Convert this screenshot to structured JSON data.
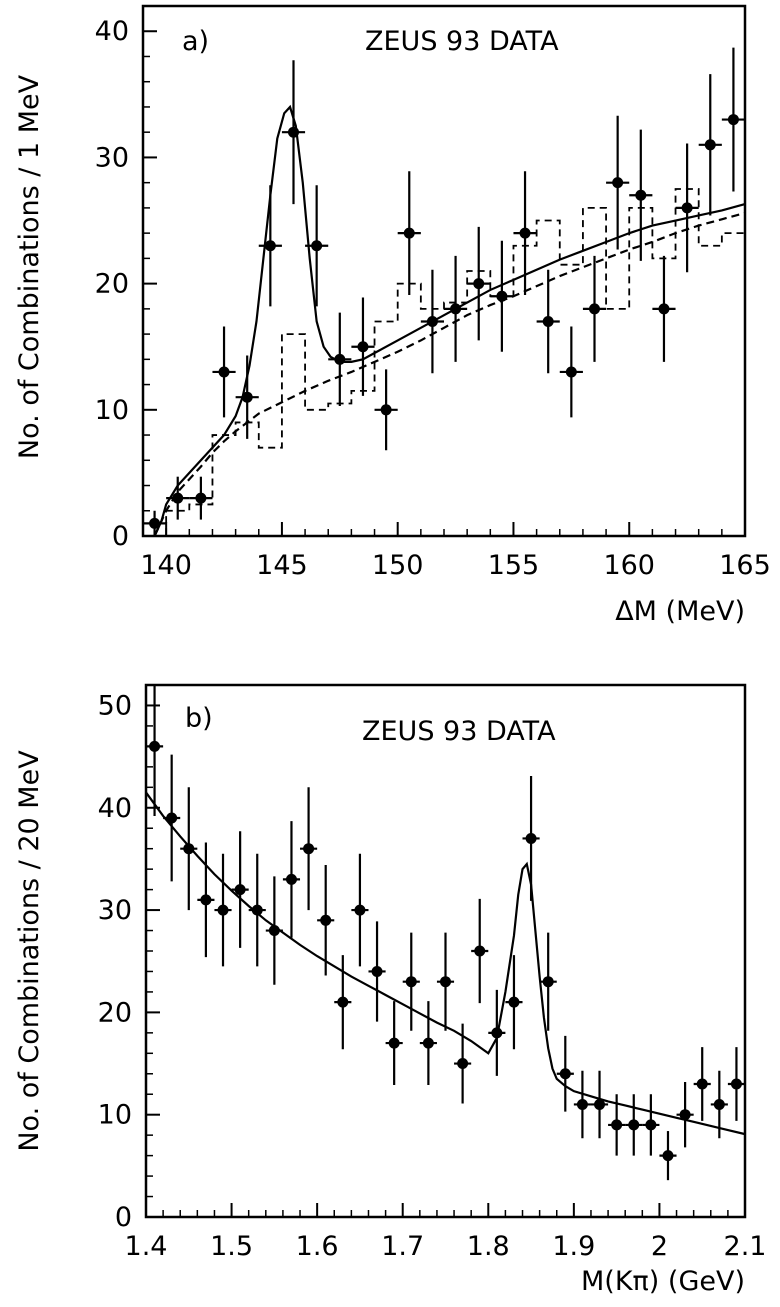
{
  "chart_data": [
    {
      "type": "scatter",
      "panel_label": "a)",
      "title": "ZEUS 93 DATA",
      "xlabel": "ΔM (MeV)",
      "ylabel": "No. of Combinations / 1 MeV",
      "xlim": [
        139,
        165
      ],
      "ylim": [
        0,
        42
      ],
      "x_ticks": [
        140,
        145,
        150,
        155,
        160,
        165
      ],
      "y_ticks": [
        0,
        10,
        20,
        30,
        40
      ],
      "series": [
        {
          "style": "points-with-errors",
          "points": [
            {
              "x": 139.5,
              "y": 1,
              "err": 1
            },
            {
              "x": 140.5,
              "y": 3,
              "err": 1.7
            },
            {
              "x": 141.5,
              "y": 3,
              "err": 1.7
            },
            {
              "x": 142.5,
              "y": 13,
              "err": 3.6
            },
            {
              "x": 143.5,
              "y": 11,
              "err": 3.3
            },
            {
              "x": 144.5,
              "y": 23,
              "err": 4.8
            },
            {
              "x": 145.5,
              "y": 32,
              "err": 5.7
            },
            {
              "x": 146.5,
              "y": 23,
              "err": 4.8
            },
            {
              "x": 147.5,
              "y": 14,
              "err": 3.7
            },
            {
              "x": 148.5,
              "y": 15,
              "err": 3.9
            },
            {
              "x": 149.5,
              "y": 10,
              "err": 3.2
            },
            {
              "x": 150.5,
              "y": 24,
              "err": 4.9
            },
            {
              "x": 151.5,
              "y": 17,
              "err": 4.1
            },
            {
              "x": 152.5,
              "y": 18,
              "err": 4.2
            },
            {
              "x": 153.5,
              "y": 20,
              "err": 4.5
            },
            {
              "x": 154.5,
              "y": 19,
              "err": 4.4
            },
            {
              "x": 155.5,
              "y": 24,
              "err": 4.9
            },
            {
              "x": 156.5,
              "y": 17,
              "err": 4.1
            },
            {
              "x": 157.5,
              "y": 13,
              "err": 3.6
            },
            {
              "x": 158.5,
              "y": 18,
              "err": 4.2
            },
            {
              "x": 159.5,
              "y": 28,
              "err": 5.3
            },
            {
              "x": 160.5,
              "y": 27,
              "err": 5.2
            },
            {
              "x": 161.5,
              "y": 18,
              "err": 4.2
            },
            {
              "x": 162.5,
              "y": 26,
              "err": 5.1
            },
            {
              "x": 163.5,
              "y": 31,
              "err": 5.6
            },
            {
              "x": 164.5,
              "y": 33,
              "err": 5.7
            }
          ]
        },
        {
          "style": "dashed-histogram",
          "bin_edges": [
            139,
            140,
            141,
            142,
            143,
            144,
            145,
            146,
            147,
            148,
            149,
            150,
            151,
            152,
            153,
            154,
            155,
            156,
            157,
            158,
            159,
            160,
            161,
            162,
            163,
            164,
            165
          ],
          "values": [
            0,
            2,
            2.5,
            8,
            9,
            7,
            16,
            10,
            10.5,
            11.5,
            17,
            20,
            18,
            18.5,
            21,
            19,
            23,
            25,
            21.5,
            26,
            18,
            26,
            22,
            27.5,
            23,
            24
          ]
        },
        {
          "style": "solid-fit",
          "x": [
            139.5,
            139.8,
            140,
            140.5,
            141,
            141.5,
            142,
            142.5,
            143,
            143.3,
            143.6,
            143.9,
            144.2,
            144.5,
            144.8,
            145.1,
            145.35,
            145.6,
            145.9,
            146.2,
            146.5,
            146.8,
            147.1,
            147.4,
            147.7,
            148,
            148.5,
            149,
            150,
            151,
            152,
            153,
            154,
            155,
            156,
            157,
            158,
            159,
            160,
            161,
            162,
            163,
            164,
            165
          ],
          "y": [
            0,
            1.2,
            2.5,
            4,
            5,
            6,
            7,
            8,
            9.5,
            11,
            13.5,
            17,
            22,
            27,
            31.5,
            33.5,
            34,
            32.5,
            28,
            22,
            17,
            15,
            14.2,
            13.9,
            13.8,
            13.8,
            14,
            14.5,
            15.5,
            16.5,
            17.5,
            18.5,
            19.5,
            20.3,
            21.1,
            21.9,
            22.6,
            23.3,
            24,
            24.6,
            25,
            25.4,
            25.8,
            26.3
          ]
        },
        {
          "style": "dashed-fit",
          "x": [
            139.5,
            140,
            140.5,
            141,
            141.5,
            142,
            142.5,
            143,
            143.5,
            144,
            145,
            146,
            147,
            148,
            149,
            150,
            151,
            152,
            153,
            154,
            155,
            156,
            157,
            158,
            159,
            160,
            161,
            162,
            163,
            164,
            165
          ],
          "y": [
            0,
            2,
            3.5,
            4.5,
            5.5,
            6.6,
            7.5,
            8.3,
            9,
            9.7,
            10.6,
            11.5,
            12.3,
            13,
            13.8,
            14.6,
            15.5,
            16.5,
            17.5,
            18.3,
            19,
            19.8,
            20.6,
            21.3,
            22,
            22.7,
            23.3,
            24,
            24.6,
            25.1,
            25.6
          ]
        }
      ]
    },
    {
      "type": "scatter",
      "panel_label": "b)",
      "title": "ZEUS 93 DATA",
      "xlabel": "M(Kπ) (GeV)",
      "ylabel": "No. of Combinations / 20 MeV",
      "xlim": [
        1.4,
        2.1
      ],
      "ylim": [
        0,
        52
      ],
      "x_ticks": [
        1.4,
        1.5,
        1.6,
        1.7,
        1.8,
        1.9,
        2,
        2.1
      ],
      "x_tick_labels": [
        "1.4",
        "1.5",
        "1.6",
        "1.7",
        "1.8",
        "1.9",
        "2",
        "2.1"
      ],
      "y_ticks": [
        0,
        10,
        20,
        30,
        40,
        50
      ],
      "series": [
        {
          "style": "points-with-errors",
          "points": [
            {
              "x": 1.41,
              "y": 46,
              "err": 6.8
            },
            {
              "x": 1.43,
              "y": 39,
              "err": 6.2
            },
            {
              "x": 1.45,
              "y": 36,
              "err": 6
            },
            {
              "x": 1.47,
              "y": 31,
              "err": 5.6
            },
            {
              "x": 1.49,
              "y": 30,
              "err": 5.5
            },
            {
              "x": 1.51,
              "y": 32,
              "err": 5.7
            },
            {
              "x": 1.53,
              "y": 30,
              "err": 5.5
            },
            {
              "x": 1.55,
              "y": 28,
              "err": 5.3
            },
            {
              "x": 1.57,
              "y": 33,
              "err": 5.7
            },
            {
              "x": 1.59,
              "y": 36,
              "err": 6
            },
            {
              "x": 1.61,
              "y": 29,
              "err": 5.4
            },
            {
              "x": 1.63,
              "y": 21,
              "err": 4.6
            },
            {
              "x": 1.65,
              "y": 30,
              "err": 5.5
            },
            {
              "x": 1.67,
              "y": 24,
              "err": 4.9
            },
            {
              "x": 1.69,
              "y": 17,
              "err": 4.1
            },
            {
              "x": 1.71,
              "y": 23,
              "err": 4.8
            },
            {
              "x": 1.73,
              "y": 17,
              "err": 4.1
            },
            {
              "x": 1.75,
              "y": 23,
              "err": 4.8
            },
            {
              "x": 1.77,
              "y": 15,
              "err": 3.9
            },
            {
              "x": 1.79,
              "y": 26,
              "err": 5.1
            },
            {
              "x": 1.81,
              "y": 18,
              "err": 4.2
            },
            {
              "x": 1.83,
              "y": 21,
              "err": 4.6
            },
            {
              "x": 1.85,
              "y": 37,
              "err": 6.1
            },
            {
              "x": 1.87,
              "y": 23,
              "err": 4.8
            },
            {
              "x": 1.89,
              "y": 14,
              "err": 3.7
            },
            {
              "x": 1.91,
              "y": 11,
              "err": 3.3
            },
            {
              "x": 1.93,
              "y": 11,
              "err": 3.3
            },
            {
              "x": 1.95,
              "y": 9,
              "err": 3
            },
            {
              "x": 1.97,
              "y": 9,
              "err": 3
            },
            {
              "x": 1.99,
              "y": 9,
              "err": 3
            },
            {
              "x": 2.01,
              "y": 6,
              "err": 2.4
            },
            {
              "x": 2.03,
              "y": 10,
              "err": 3.2
            },
            {
              "x": 2.05,
              "y": 13,
              "err": 3.6
            },
            {
              "x": 2.07,
              "y": 11,
              "err": 3.3
            },
            {
              "x": 2.09,
              "y": 13,
              "err": 3.6
            }
          ]
        },
        {
          "style": "solid-fit",
          "x": [
            1.4,
            1.42,
            1.44,
            1.46,
            1.48,
            1.5,
            1.52,
            1.54,
            1.56,
            1.58,
            1.6,
            1.62,
            1.64,
            1.66,
            1.68,
            1.7,
            1.72,
            1.74,
            1.76,
            1.78,
            1.8,
            1.81,
            1.82,
            1.83,
            1.835,
            1.84,
            1.845,
            1.85,
            1.855,
            1.86,
            1.865,
            1.87,
            1.875,
            1.88,
            1.89,
            1.9,
            1.92,
            1.94,
            1.96,
            1.98,
            2.0,
            2.02,
            2.04,
            2.06,
            2.08,
            2.1
          ],
          "y": [
            41.5,
            39.2,
            37.2,
            35.3,
            33.5,
            31.9,
            30.4,
            29,
            27.8,
            26.6,
            25.5,
            24.5,
            23.5,
            22.6,
            21.7,
            20.8,
            19.9,
            19,
            18.2,
            17.2,
            16,
            17.5,
            22,
            27.5,
            31.5,
            34,
            34.5,
            32.5,
            28,
            23.5,
            19.5,
            16.5,
            14.5,
            13.5,
            12.8,
            12.3,
            11.8,
            11.3,
            10.9,
            10.5,
            10.1,
            9.7,
            9.3,
            8.9,
            8.5,
            8.1
          ]
        }
      ]
    }
  ]
}
